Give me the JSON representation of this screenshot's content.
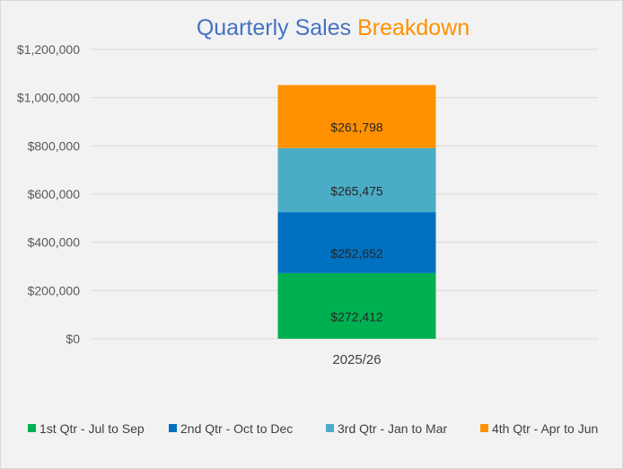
{
  "chart_data": {
    "type": "bar",
    "stacked": true,
    "title_parts": [
      "Quarterly Sales ",
      "Breakdown"
    ],
    "title_colors": [
      "#4472c4",
      "#ff9100"
    ],
    "categories": [
      "2025/26"
    ],
    "series": [
      {
        "name": "1st Qtr - Jul to Sep",
        "values": [
          272412
        ],
        "color": "#00b050",
        "label": "$272,412"
      },
      {
        "name": "2nd Qtr - Oct to Dec",
        "values": [
          252652
        ],
        "color": "#0070c0",
        "label": "$252,652"
      },
      {
        "name": "3rd Qtr - Jan to Mar",
        "values": [
          265475
        ],
        "color": "#4bacc6",
        "label": "$265,475"
      },
      {
        "name": "4th Qtr - Apr to Jun",
        "values": [
          261798
        ],
        "color": "#ff9100",
        "label": "$261,798"
      }
    ],
    "ylim": [
      0,
      1200000
    ],
    "yticks": [
      {
        "value": 0,
        "label": "$0"
      },
      {
        "value": 200000,
        "label": "$200,000"
      },
      {
        "value": 400000,
        "label": "$400,000"
      },
      {
        "value": 600000,
        "label": "$600,000"
      },
      {
        "value": 800000,
        "label": "$800,000"
      },
      {
        "value": 1000000,
        "label": "$1,000,000"
      },
      {
        "value": 1200000,
        "label": "$1,200,000"
      }
    ],
    "grid": true,
    "legend_position": "bottom",
    "background": "#f2f2f2"
  }
}
